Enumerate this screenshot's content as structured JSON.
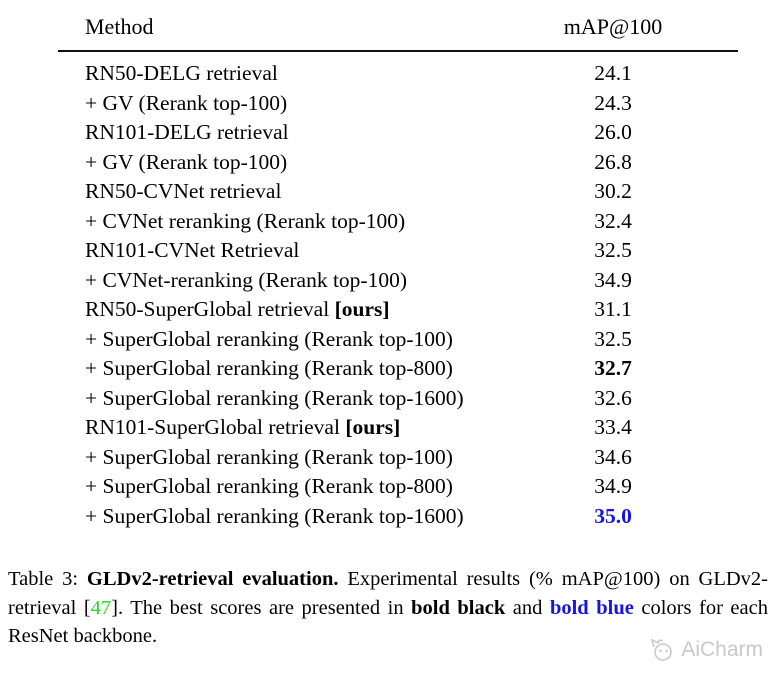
{
  "table": {
    "columns": {
      "method": "Method",
      "score": "mAP@100"
    },
    "rows": [
      {
        "method": "RN50-DELG retrieval",
        "method_bold_suffix": "",
        "value": "24.1",
        "value_style": "normal"
      },
      {
        "method": "+ GV (Rerank top-100)",
        "method_bold_suffix": "",
        "value": "24.3",
        "value_style": "normal"
      },
      {
        "method": "RN101-DELG retrieval",
        "method_bold_suffix": "",
        "value": "26.0",
        "value_style": "normal"
      },
      {
        "method": "+ GV (Rerank top-100)",
        "method_bold_suffix": "",
        "value": "26.8",
        "value_style": "normal"
      },
      {
        "method": "RN50-CVNet retrieval",
        "method_bold_suffix": "",
        "value": "30.2",
        "value_style": "normal"
      },
      {
        "method": "+ CVNet reranking (Rerank top-100)",
        "method_bold_suffix": "",
        "value": "32.4",
        "value_style": "normal"
      },
      {
        "method": "RN101-CVNet Retrieval",
        "method_bold_suffix": "",
        "value": "32.5",
        "value_style": "normal"
      },
      {
        "method": "+ CVNet-reranking (Rerank top-100)",
        "method_bold_suffix": "",
        "value": "34.9",
        "value_style": "normal"
      },
      {
        "method": "RN50-SuperGlobal retrieval",
        "method_bold_suffix": "[ours]",
        "value": "31.1",
        "value_style": "normal"
      },
      {
        "method": "+ SuperGlobal reranking (Rerank top-100)",
        "method_bold_suffix": "",
        "value": "32.5",
        "value_style": "normal"
      },
      {
        "method": "+ SuperGlobal reranking (Rerank top-800)",
        "method_bold_suffix": "",
        "value": "32.7",
        "value_style": "bold"
      },
      {
        "method": "+ SuperGlobal reranking (Rerank top-1600)",
        "method_bold_suffix": "",
        "value": "32.6",
        "value_style": "normal"
      },
      {
        "method": "RN101-SuperGlobal retrieval",
        "method_bold_suffix": "[ours]",
        "value": "33.4",
        "value_style": "normal"
      },
      {
        "method": "+ SuperGlobal reranking (Rerank top-100)",
        "method_bold_suffix": "",
        "value": "34.6",
        "value_style": "normal"
      },
      {
        "method": "+ SuperGlobal reranking (Rerank top-800)",
        "method_bold_suffix": "",
        "value": "34.9",
        "value_style": "normal"
      },
      {
        "method": "+ SuperGlobal reranking (Rerank top-1600)",
        "method_bold_suffix": "",
        "value": "35.0",
        "value_style": "bold-blue"
      }
    ]
  },
  "caption": {
    "prefix": "Table 3: ",
    "title_bold": "GLDv2-retrieval evaluation.",
    "body1": " Experimental results (% mAP@100) on GLDv2-retrieval [",
    "citation": "47",
    "body2": "]. The best scores are presented in ",
    "bold_black_text": "bold black",
    "body3": " and ",
    "bold_blue_text": "bold blue",
    "body4": " colors for each ResNet backbone."
  },
  "watermark": {
    "label": "AiCharm"
  },
  "colors": {
    "text": "#000000",
    "accent_blue": "#1414e6",
    "citation_green": "#22dd22",
    "watermark_gray": "#c9c9c9"
  }
}
